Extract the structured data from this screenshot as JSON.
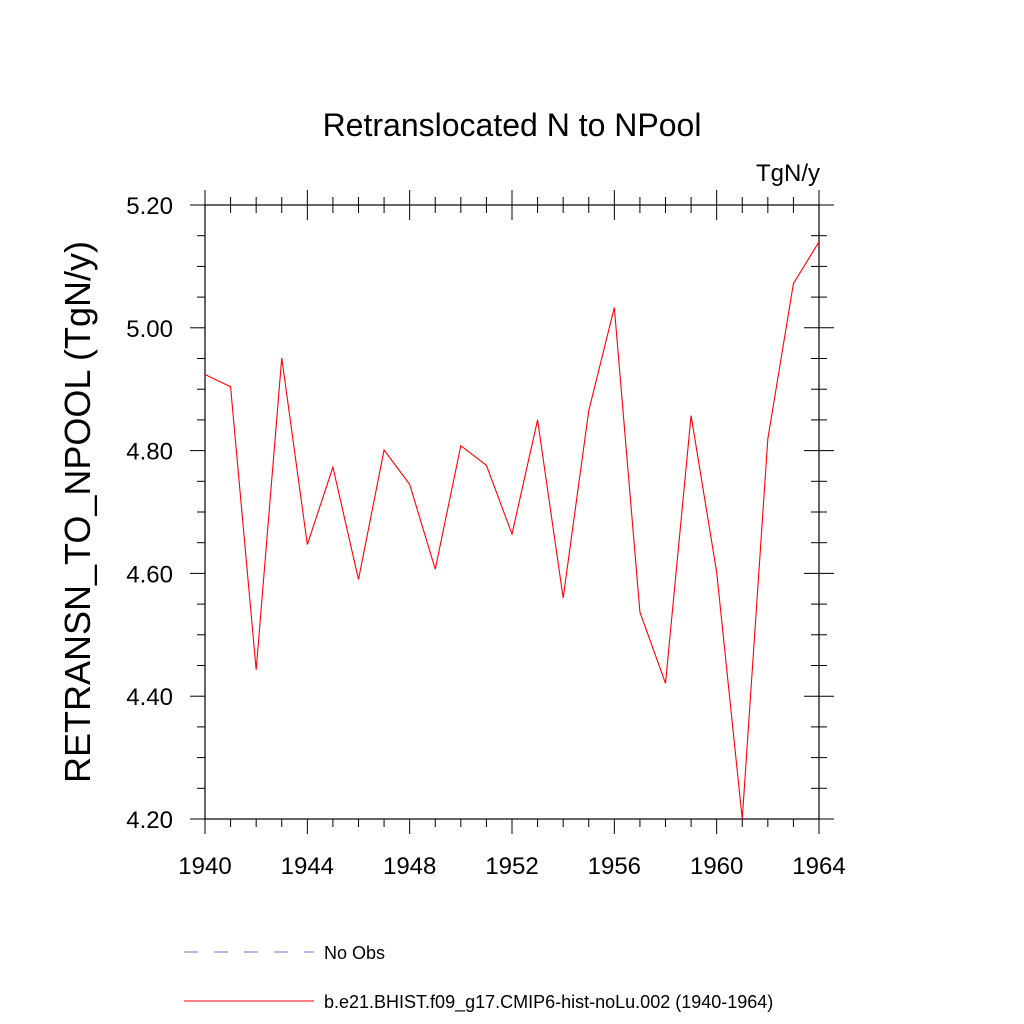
{
  "chart_data": {
    "type": "line",
    "title": "Retranslocated N to NPool",
    "units_label": "TgN/y",
    "ylabel": "RETRANSN_TO_NPOOL  (TgN/y)",
    "xlabel": "",
    "xlim": [
      1940,
      1964
    ],
    "ylim": [
      4.2,
      5.2
    ],
    "x_ticks": [
      1940,
      1944,
      1948,
      1952,
      1956,
      1960,
      1964
    ],
    "x_tick_labels": [
      "1940",
      "1944",
      "1948",
      "1952",
      "1956",
      "1960",
      "1964"
    ],
    "y_ticks": [
      4.2,
      4.4,
      4.6,
      4.8,
      5.0,
      5.2
    ],
    "y_tick_labels": [
      "4.20",
      "4.40",
      "4.60",
      "4.80",
      "5.00",
      "5.20"
    ],
    "grid": false,
    "legend_position": "bottom",
    "series": [
      {
        "name": "b.e21.BHIST.f09_g17.CMIP6-hist-noLu.002 (1940-1964)",
        "color": "#ff0000",
        "style": "solid",
        "x": [
          1940,
          1941,
          1942,
          1943,
          1944,
          1945,
          1946,
          1947,
          1948,
          1949,
          1950,
          1951,
          1952,
          1953,
          1954,
          1955,
          1956,
          1957,
          1958,
          1959,
          1960,
          1961,
          1962,
          1963,
          1964
        ],
        "values": [
          4.924,
          4.904,
          4.443,
          4.951,
          4.647,
          4.773,
          4.59,
          4.801,
          4.745,
          4.607,
          4.808,
          4.776,
          4.664,
          4.85,
          4.56,
          4.865,
          5.033,
          4.537,
          4.421,
          4.857,
          4.602,
          4.2,
          4.819,
          5.072,
          5.14
        ]
      }
    ],
    "legend": [
      {
        "label": "No Obs",
        "color": "#7070c8",
        "style": "dashed"
      },
      {
        "label": "b.e21.BHIST.f09_g17.CMIP6-hist-noLu.002 (1940-1964)",
        "color": "#ff0000",
        "style": "solid"
      }
    ]
  }
}
